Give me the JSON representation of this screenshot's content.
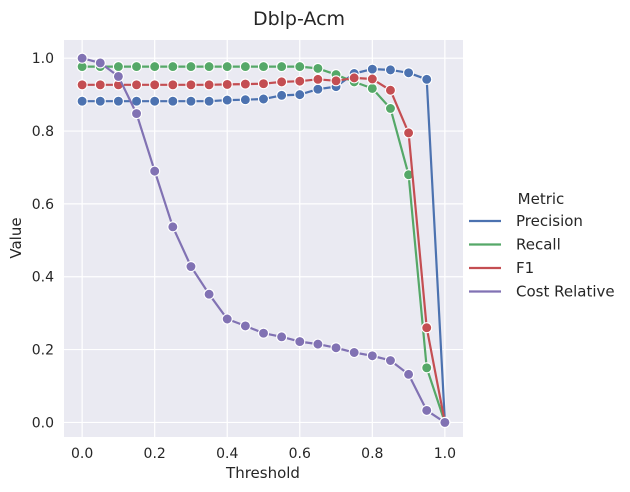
{
  "chart_data": {
    "type": "line",
    "title": "Dblp-Acm",
    "xlabel": "Threshold",
    "ylabel": "Value",
    "xlim": [
      -0.05,
      1.05
    ],
    "ylim": [
      -0.04,
      1.05
    ],
    "xticks": [
      "0.0",
      "0.2",
      "0.4",
      "0.6",
      "0.8",
      "1.0"
    ],
    "yticks": [
      "0.0",
      "0.2",
      "0.4",
      "0.6",
      "0.8",
      "1.0"
    ],
    "grid": true,
    "legend": {
      "title": "Metric",
      "placement": "right"
    },
    "x": [
      0.0,
      0.05,
      0.1,
      0.15,
      0.2,
      0.25,
      0.3,
      0.35,
      0.4,
      0.45,
      0.5,
      0.55,
      0.6,
      0.65,
      0.7,
      0.75,
      0.8,
      0.85,
      0.9,
      0.95,
      1.0
    ],
    "series": [
      {
        "name": "Precision",
        "color": "#4c72b0",
        "values": [
          0.882,
          0.882,
          0.882,
          0.882,
          0.882,
          0.882,
          0.882,
          0.882,
          0.885,
          0.886,
          0.888,
          0.898,
          0.9,
          0.915,
          0.922,
          0.958,
          0.97,
          0.968,
          0.96,
          0.942,
          0.0
        ]
      },
      {
        "name": "Recall",
        "color": "#55a868",
        "values": [
          0.977,
          0.977,
          0.977,
          0.977,
          0.977,
          0.977,
          0.977,
          0.977,
          0.977,
          0.977,
          0.977,
          0.977,
          0.977,
          0.972,
          0.955,
          0.935,
          0.917,
          0.862,
          0.68,
          0.15,
          0.0
        ]
      },
      {
        "name": "F1",
        "color": "#c44e52",
        "values": [
          0.927,
          0.927,
          0.927,
          0.927,
          0.927,
          0.927,
          0.927,
          0.927,
          0.928,
          0.929,
          0.93,
          0.935,
          0.937,
          0.942,
          0.938,
          0.946,
          0.943,
          0.912,
          0.795,
          0.26,
          0.0
        ]
      },
      {
        "name": "Cost Relative",
        "color": "#8172b3",
        "values": [
          1.0,
          0.987,
          0.95,
          0.848,
          0.69,
          0.537,
          0.428,
          0.352,
          0.284,
          0.265,
          0.245,
          0.235,
          0.222,
          0.215,
          0.205,
          0.192,
          0.183,
          0.17,
          0.132,
          0.033,
          0.0
        ]
      }
    ]
  }
}
